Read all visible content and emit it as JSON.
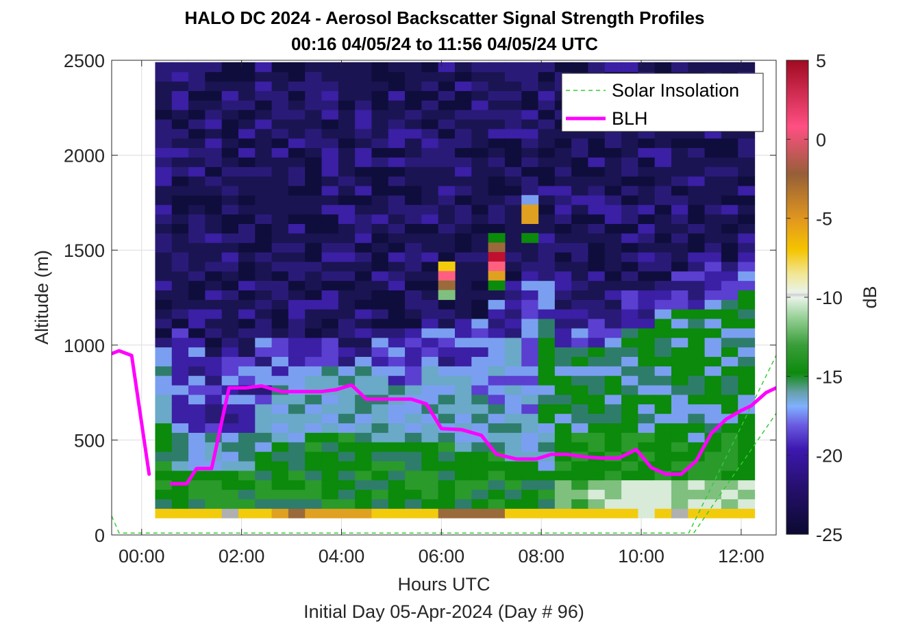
{
  "chart_data": {
    "type": "heatmap",
    "title": "HALO DC 2024 - Aerosol Backscatter Signal Strength Profiles",
    "subtitle": "00:16 04/05/24 to 11:56 04/05/24  UTC",
    "xlabel": "Hours UTC",
    "xlabel2": "Initial Day 05-Apr-2024 (Day # 96)",
    "ylabel": "Altitude (m)",
    "colorbar_label": "dB",
    "xlim": [
      -0.6,
      12.7
    ],
    "ylim": [
      0,
      2500
    ],
    "x_ticks": [
      0,
      2,
      4,
      6,
      8,
      10,
      12
    ],
    "x_tick_labels": [
      "00:00",
      "02:00",
      "04:00",
      "06:00",
      "08:00",
      "10:00",
      "12:00"
    ],
    "y_ticks": [
      0,
      500,
      1000,
      1500,
      2000,
      2500
    ],
    "y_tick_labels": [
      "0",
      "500",
      "1000",
      "1500",
      "2000",
      "2500"
    ],
    "colorbar_ticks": [
      5,
      0,
      -5,
      -10,
      -15,
      -20,
      -25
    ],
    "colorbar_tick_labels": [
      "5",
      "0",
      "-5",
      "-10",
      "-15",
      "-20",
      "-25"
    ],
    "clim": [
      -25,
      5
    ],
    "grid": true,
    "legend_position": "top-right",
    "legend": [
      {
        "name": "Solar Insolation",
        "color": "#33cc33",
        "style": "dashed"
      },
      {
        "name": "BLH",
        "color": "#ff00ff",
        "style": "solid"
      }
    ],
    "heatmap": {
      "x_start": 0.27,
      "x_step": 0.3333,
      "y_start": 90,
      "y_step": 50
    },
    "series": [
      {
        "name": "BLH",
        "color": "#ff00ff",
        "segments": [
          [
            [
              -0.6,
              955
            ],
            [
              -0.45,
              970
            ],
            [
              -0.2,
              945
            ],
            [
              0.15,
              320
            ]
          ],
          [
            [
              0.6,
              270
            ],
            [
              0.9,
              270
            ],
            [
              1.1,
              350
            ],
            [
              1.4,
              350
            ],
            [
              1.75,
              775
            ],
            [
              2.1,
              775
            ],
            [
              2.4,
              785
            ],
            [
              2.8,
              755
            ],
            [
              3.2,
              755
            ],
            [
              3.6,
              755
            ],
            [
              3.9,
              765
            ],
            [
              4.2,
              790
            ],
            [
              4.5,
              715
            ],
            [
              5.0,
              715
            ],
            [
              5.4,
              715
            ],
            [
              5.7,
              690
            ],
            [
              6.0,
              560
            ],
            [
              6.4,
              555
            ],
            [
              6.8,
              525
            ],
            [
              7.1,
              425
            ],
            [
              7.5,
              400
            ],
            [
              7.9,
              400
            ],
            [
              8.2,
              425
            ],
            [
              8.5,
              425
            ],
            [
              8.9,
              410
            ],
            [
              9.2,
              405
            ],
            [
              9.55,
              405
            ],
            [
              9.9,
              450
            ],
            [
              10.2,
              355
            ],
            [
              10.5,
              320
            ],
            [
              10.8,
              320
            ],
            [
              11.1,
              390
            ],
            [
              11.4,
              535
            ],
            [
              11.7,
              610
            ],
            [
              12.0,
              655
            ],
            [
              12.2,
              680
            ],
            [
              12.5,
              750
            ],
            [
              12.7,
              775
            ]
          ]
        ]
      },
      {
        "name": "Solar Insolation",
        "color": "#33cc33",
        "segments": [
          [
            [
              -0.6,
              100
            ],
            [
              -0.45,
              10
            ],
            [
              10.95,
              10
            ],
            [
              12.7,
              945
            ]
          ],
          [
            [
              11.05,
              10
            ],
            [
              12.7,
              640
            ]
          ]
        ]
      }
    ]
  }
}
